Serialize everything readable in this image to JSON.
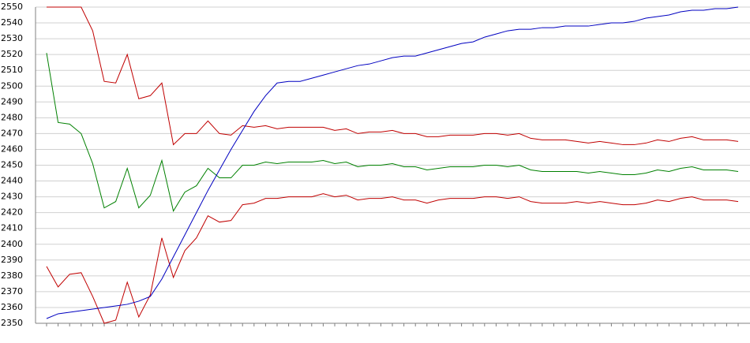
{
  "chart_data": {
    "type": "line",
    "categories": [
      null,
      null,
      null,
      null,
      null,
      null,
      null,
      null,
      null,
      null,
      null,
      null,
      null,
      null,
      null,
      null,
      null,
      null,
      null,
      null,
      null,
      null,
      null,
      null,
      null,
      null,
      null,
      null,
      null,
      null,
      null,
      null,
      null,
      null,
      null,
      null,
      null,
      null,
      null,
      null,
      null,
      null,
      null,
      null,
      null,
      null,
      null,
      null,
      null,
      null,
      null,
      null,
      null,
      null,
      null,
      null,
      null,
      null,
      null,
      null,
      null
    ],
    "series": [
      {
        "color": "#c00000",
        "values": [
          2550,
          2550,
          2550,
          2550,
          2535,
          2503,
          2502,
          2520,
          2492,
          2494,
          2502,
          2463,
          2470,
          2470,
          2478,
          2470,
          2469,
          2475,
          2474,
          2475,
          2473,
          2474,
          2474,
          2474,
          2474,
          2472,
          2473,
          2470,
          2471,
          2471,
          2472,
          2470,
          2470,
          2468,
          2468,
          2469,
          2469,
          2469,
          2470,
          2470,
          2469,
          2470,
          2467,
          2466,
          2466,
          2466,
          2465,
          2464,
          2465,
          2464,
          2463,
          2463,
          2464,
          2466,
          2465,
          2467,
          2468,
          2466,
          2466,
          2466,
          2465
        ]
      },
      {
        "color": "#008000",
        "values": [
          2521,
          2477,
          2476,
          2470,
          2451,
          2423,
          2427,
          2448,
          2423,
          2431,
          2453,
          2421,
          2433,
          2437,
          2448,
          2442,
          2442,
          2450,
          2450,
          2452,
          2451,
          2452,
          2452,
          2452,
          2453,
          2451,
          2452,
          2449,
          2450,
          2450,
          2451,
          2449,
          2449,
          2447,
          2448,
          2449,
          2449,
          2449,
          2450,
          2450,
          2449,
          2450,
          2447,
          2446,
          2446,
          2446,
          2446,
          2445,
          2446,
          2445,
          2444,
          2444,
          2445,
          2447,
          2446,
          2448,
          2449,
          2447,
          2447,
          2447,
          2446
        ]
      },
      {
        "color": "#c00000",
        "values": [
          2386,
          2373,
          2381,
          2382,
          2367,
          2350,
          2352,
          2376,
          2354,
          2368,
          2404,
          2379,
          2396,
          2404,
          2418,
          2414,
          2415,
          2425,
          2426,
          2429,
          2429,
          2430,
          2430,
          2430,
          2432,
          2430,
          2431,
          2428,
          2429,
          2429,
          2430,
          2428,
          2428,
          2426,
          2428,
          2429,
          2429,
          2429,
          2430,
          2430,
          2429,
          2430,
          2427,
          2426,
          2426,
          2426,
          2427,
          2426,
          2427,
          2426,
          2425,
          2425,
          2426,
          2428,
          2427,
          2429,
          2430,
          2428,
          2428,
          2428,
          2427
        ]
      },
      {
        "color": "#0000c0",
        "values": [
          2353,
          2356,
          2357,
          2358,
          2359,
          2360,
          2361,
          2362,
          2364,
          2367,
          2378,
          2392,
          2406,
          2420,
          2434,
          2447,
          2460,
          2472,
          2484,
          2494,
          2502,
          2503,
          2503,
          2505,
          2507,
          2509,
          2511,
          2513,
          2514,
          2516,
          2518,
          2519,
          2519,
          2521,
          2523,
          2525,
          2527,
          2528,
          2531,
          2533,
          2535,
          2536,
          2536,
          2537,
          2537,
          2538,
          2538,
          2538,
          2539,
          2540,
          2540,
          2541,
          2543,
          2544,
          2545,
          2547,
          2548,
          2548,
          2549,
          2549,
          2550
        ]
      }
    ],
    "ylim": [
      2350,
      2550
    ],
    "yticks": [
      2350,
      2360,
      2370,
      2380,
      2390,
      2400,
      2410,
      2420,
      2430,
      2440,
      2450,
      2460,
      2470,
      2480,
      2490,
      2500,
      2510,
      2520,
      2530,
      2540,
      2550
    ],
    "grid": true
  }
}
